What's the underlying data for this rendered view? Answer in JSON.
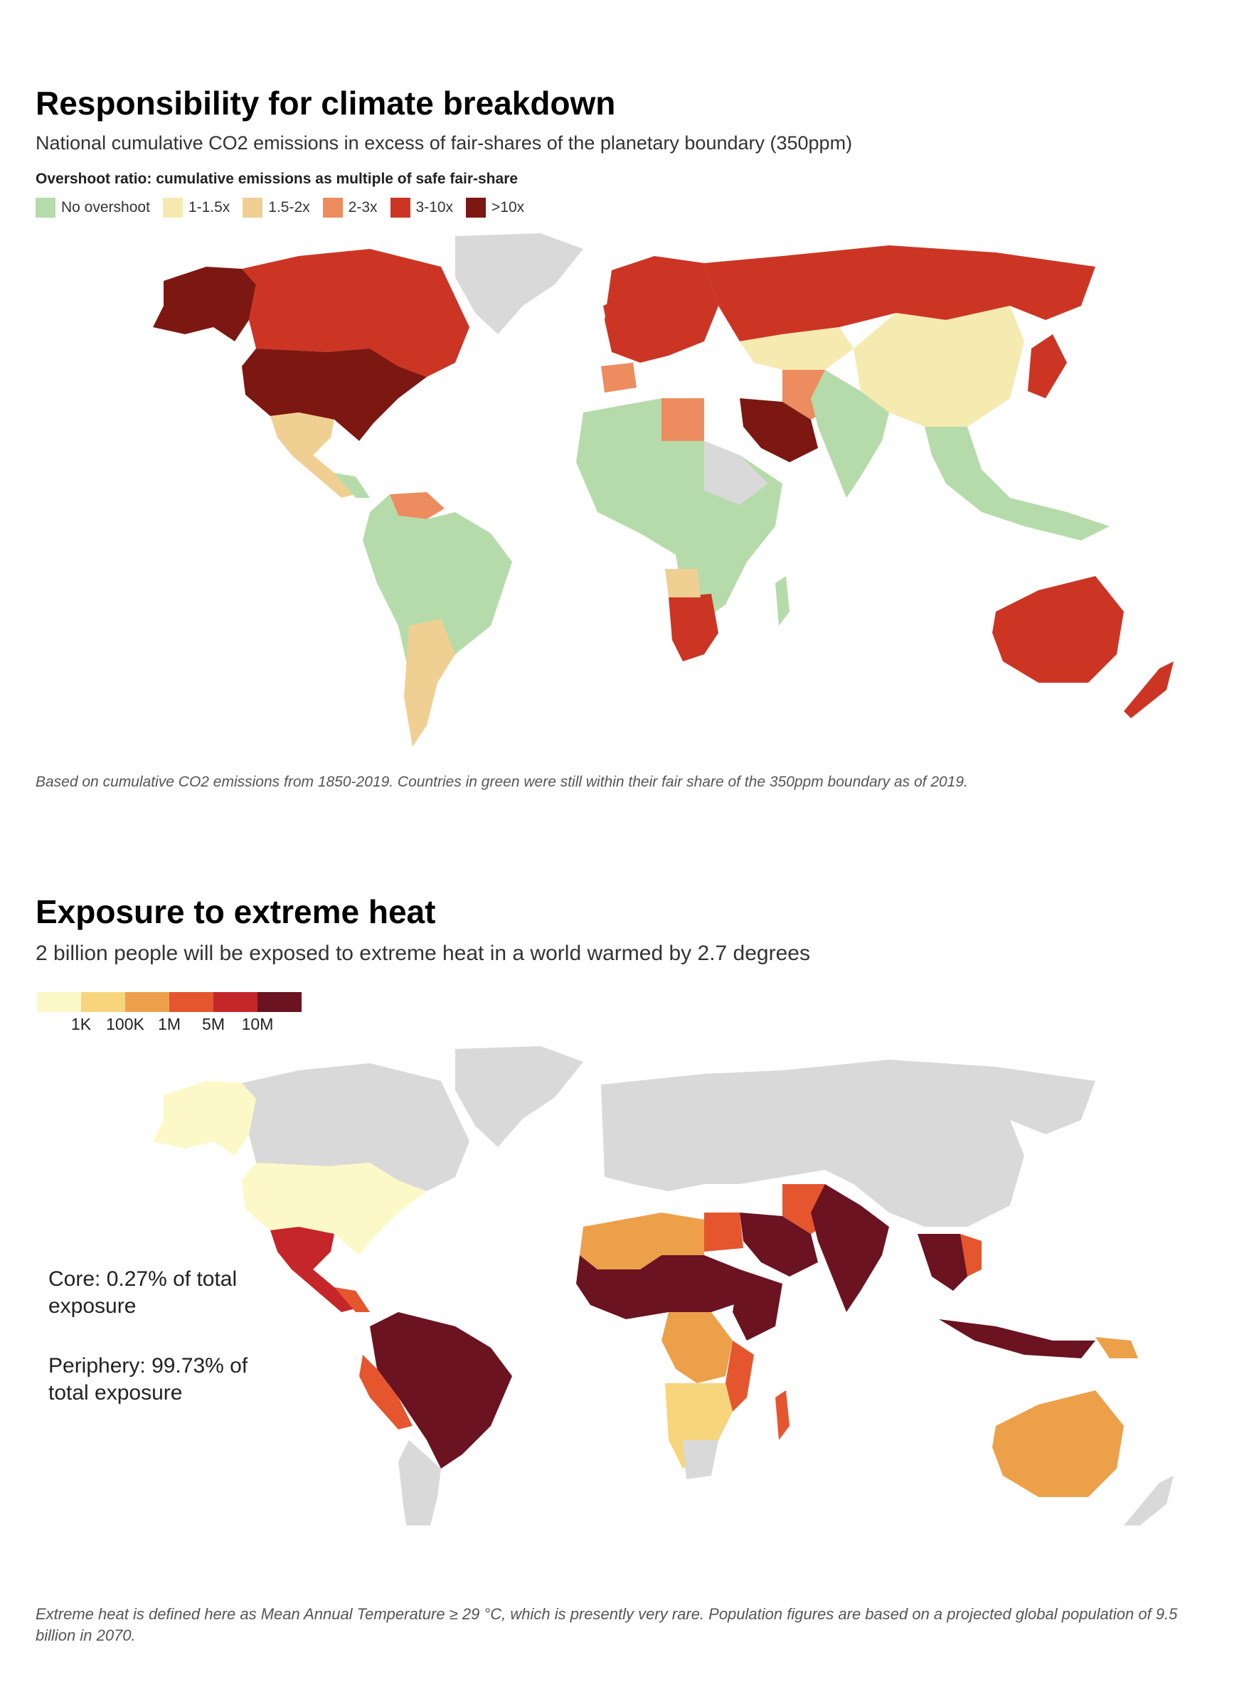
{
  "panel1": {
    "title": "Responsibility for climate breakdown",
    "subtitle": "National cumulative CO2 emissions in excess of fair-shares of the planetary boundary (350ppm)",
    "legend_title": "Overshoot ratio: cumulative emissions as multiple of safe fair-share",
    "legend": [
      {
        "label": "No overshoot",
        "color": "#b6dbaa"
      },
      {
        "label": "1-1.5x",
        "color": "#f5eab0"
      },
      {
        "label": "1.5-2x",
        "color": "#f0cf93"
      },
      {
        "label": "2-3x",
        "color": "#ec8c5f"
      },
      {
        "label": "3-10x",
        "color": "#cc3524"
      },
      {
        "label": ">10x",
        "color": "#7d1711"
      }
    ],
    "no_data_color": "#d9d9d9",
    "note": "Based on cumulative CO2 emissions from 1850-2019. Countries in green were still within their fair share of the 350ppm boundary as of 2019."
  },
  "panel2": {
    "title": "Exposure to extreme heat",
    "subtitle": "2 billion people will be exposed to extreme heat in a world warmed by 2.7 degrees",
    "legend_colors": [
      "#fdf8c7",
      "#f7d57c",
      "#eda04a",
      "#e5562e",
      "#c4262a",
      "#6b1320"
    ],
    "legend_labels": [
      "1K",
      "100K",
      "1M",
      "5M",
      "10M"
    ],
    "no_data_color": "#d9d9d9",
    "annotation_core": "Core: 0.27% of total exposure",
    "annotation_periphery": "Periphery: 99.73% of total exposure",
    "note": "Extreme heat is defined here as Mean Annual Temperature ≥ 29 °C, which is presently very rare. Population figures are based on a projected global population of 9.5 billion in 2070."
  }
}
